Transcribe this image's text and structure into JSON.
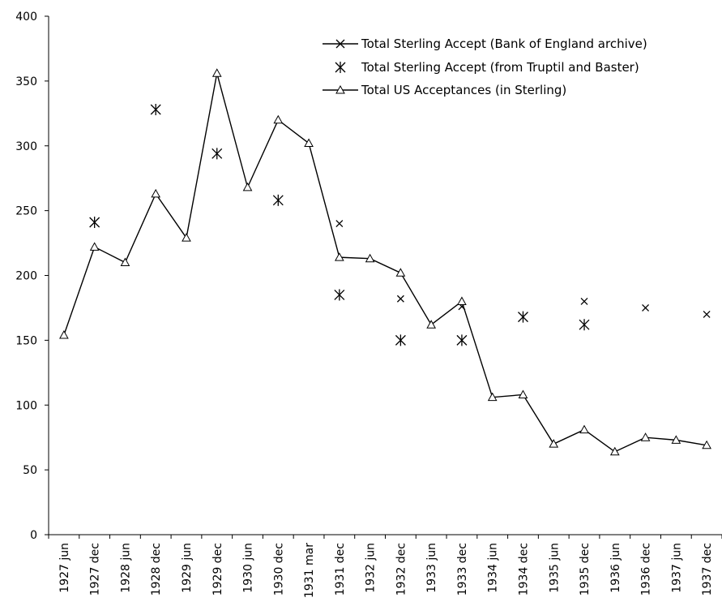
{
  "chart_data": {
    "type": "line",
    "title": "",
    "xlabel": "",
    "ylabel": "",
    "ylim": [
      0,
      400
    ],
    "yticks": [
      0,
      50,
      100,
      150,
      200,
      250,
      300,
      350,
      400
    ],
    "grid": false,
    "legend_position": "top-right",
    "categories": [
      "1927 jun",
      "1927 dec",
      "1928 jun",
      "1928 dec",
      "1929 jun",
      "1929 dec",
      "1930 jun",
      "1930 dec",
      "1931 mar",
      "1931 dec",
      "1932 jun",
      "1932 dec",
      "1933 jun",
      "1933 dec",
      "1934 jun",
      "1934 dec",
      "1935 jun",
      "1935 dec",
      "1936 jun",
      "1936 dec",
      "1937 jun",
      "1937 dec"
    ],
    "series": [
      {
        "name": "Total Sterling Accept (Bank of England archive)",
        "marker": "x",
        "line": false,
        "values": [
          null,
          null,
          null,
          null,
          null,
          null,
          null,
          null,
          null,
          240,
          null,
          182,
          null,
          176,
          null,
          null,
          null,
          180,
          null,
          175,
          null,
          170
        ]
      },
      {
        "name": "Total Sterling Accept (from Truptil and Baster)",
        "marker": "asterisk",
        "line": false,
        "values": [
          null,
          241,
          null,
          328,
          null,
          294,
          null,
          258,
          null,
          185,
          null,
          150,
          null,
          150,
          null,
          168,
          null,
          162,
          null,
          null,
          null,
          null
        ]
      },
      {
        "name": "Total US Acceptances (in Sterling)",
        "marker": "triangle",
        "line": true,
        "values": [
          154,
          222,
          210,
          263,
          229,
          356,
          268,
          320,
          302,
          214,
          213,
          202,
          162,
          180,
          106,
          108,
          70,
          81,
          64,
          75,
          73,
          69
        ]
      }
    ]
  }
}
